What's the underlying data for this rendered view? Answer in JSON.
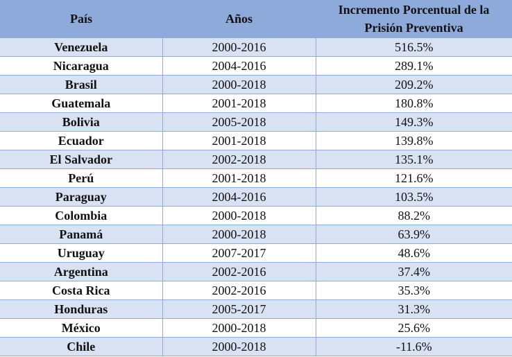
{
  "table": {
    "headers": {
      "country": "País",
      "years": "Años",
      "increase": "Incremento Porcentual de la Prisión Preventiva"
    },
    "rows": [
      {
        "country": "Venezuela",
        "years": "2000-2016",
        "increase": "516.5%"
      },
      {
        "country": "Nicaragua",
        "years": "2004-2016",
        "increase": "289.1%"
      },
      {
        "country": "Brasil",
        "years": "2000-2018",
        "increase": "209.2%"
      },
      {
        "country": "Guatemala",
        "years": "2001-2018",
        "increase": "180.8%"
      },
      {
        "country": "Bolivia",
        "years": "2005-2018",
        "increase": "149.3%"
      },
      {
        "country": "Ecuador",
        "years": "2001-2018",
        "increase": "139.8%"
      },
      {
        "country": "El Salvador",
        "years": "2002-2018",
        "increase": "135.1%"
      },
      {
        "country": "Perú",
        "years": "2001-2018",
        "increase": "121.6%"
      },
      {
        "country": "Paraguay",
        "years": "2004-2016",
        "increase": "103.5%"
      },
      {
        "country": "Colombia",
        "years": "2000-2018",
        "increase": "88.2%"
      },
      {
        "country": "Panamá",
        "years": "2000-2018",
        "increase": "63.9%"
      },
      {
        "country": "Uruguay",
        "years": "2007-2017",
        "increase": "48.6%"
      },
      {
        "country": "Argentina",
        "years": "2002-2016",
        "increase": "37.4%"
      },
      {
        "country": "Costa Rica",
        "years": "2002-2016",
        "increase": "35.3%"
      },
      {
        "country": "Honduras",
        "years": "2005-2017",
        "increase": "31.3%"
      },
      {
        "country": "México",
        "years": "2000-2018",
        "increase": "25.6%"
      },
      {
        "country": "Chile",
        "years": "2000-2018",
        "increase": "-11.6%"
      }
    ]
  },
  "colors": {
    "header_bg": "#8eaadb",
    "band_bg": "#d9e2f3",
    "border": "#8eaadb"
  }
}
